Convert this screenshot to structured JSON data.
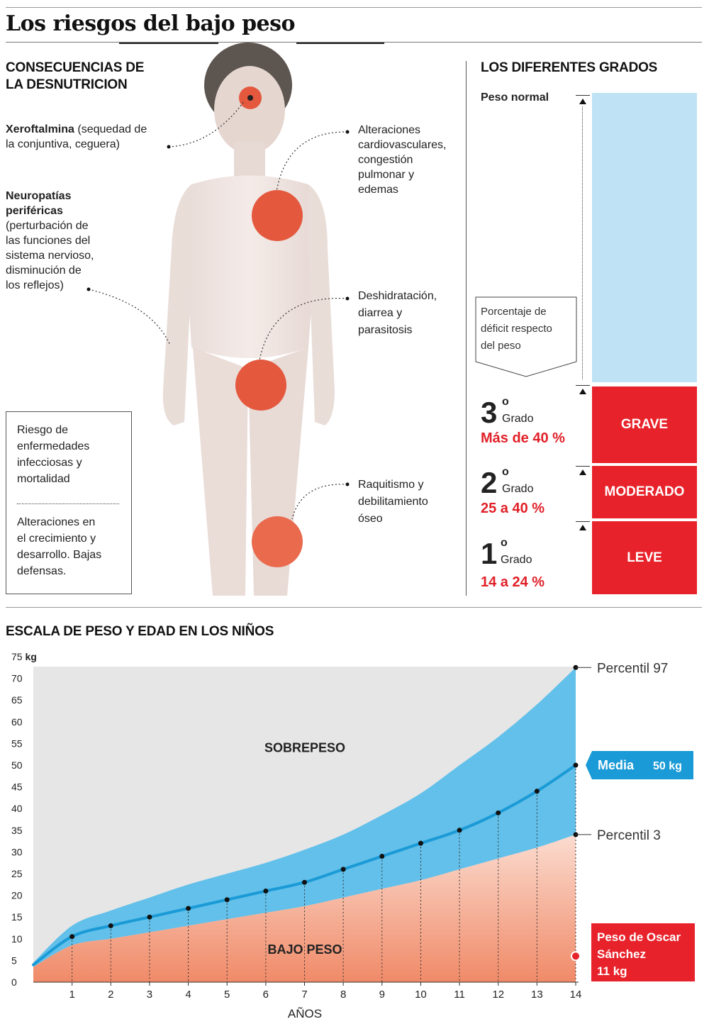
{
  "title": "Los riesgos del bajo peso",
  "sections": {
    "consequences_title": "CONSECUENCIAS DE\nLA DESNUTRICION",
    "grades_title": "LOS DIFERENTES GRADOS",
    "scale_title": "ESCALA DE PESO Y EDAD EN LOS NIÑOS"
  },
  "consequences": {
    "xeroftalmia_term": "Xeroftalmina",
    "xeroftalmia_rest": " (sequedad de la conjuntiva, ceguera)",
    "neuropatias_term": "Neuropatías\nperiféricas",
    "neuropatias_rest": "(perturbación de\nlas funciones del\nsistema nervioso,\ndisminución de\nlos reflejos)",
    "cardio": "Alteraciones\ncardiovasculares,\ncongestión\npulmonar y\nedemas",
    "deshidratacion": "Deshidratación,\ndiarrea y\nparasitosis",
    "raquitismo": "Raquitismo y\ndebilitamiento\nóseo",
    "box_riesgo": "Riesgo de\nenfermedades\ninfecciosas y\nmortalidad",
    "box_crecimiento": "Alteraciones  en\nel crecimiento y\ndesarrollo. Bajas\ndefensas."
  },
  "grades": {
    "peso_normal": "Peso normal",
    "deficit_note": "Porcentaje de\ndéficit respecto\ndel peso",
    "items": [
      {
        "num": "3",
        "sup": "o",
        "word": "Grado",
        "range": "Más de 40 %",
        "severity": "GRAVE"
      },
      {
        "num": "2",
        "sup": "o",
        "word": "Grado",
        "range": "25 a 40 %",
        "severity": "MODERADO"
      },
      {
        "num": "1",
        "sup": "o",
        "word": "Grado",
        "range": "14 a 24 %",
        "severity": "LEVE"
      }
    ],
    "colors": {
      "normal": "#bfe3f5",
      "severity": "#e8222a",
      "range_text": "#e02028"
    }
  },
  "chart_data": {
    "type": "area",
    "xlabel": "AÑOS",
    "x_ticks": [
      "1",
      "2",
      "3",
      "4",
      "5",
      "6",
      "7",
      "8",
      "9",
      "10",
      "11",
      "12",
      "13",
      "14"
    ],
    "y_ticks": [
      "0",
      "5",
      "10",
      "15",
      "20",
      "25",
      "30",
      "35",
      "40",
      "45",
      "50",
      "55",
      "60",
      "65",
      "70",
      "75"
    ],
    "y_unit": "kg",
    "xlim": [
      0,
      14
    ],
    "ylim": [
      0,
      75
    ],
    "x": [
      0,
      1,
      2,
      3,
      4,
      5,
      6,
      7,
      8,
      9,
      10,
      11,
      12,
      13,
      14
    ],
    "series": [
      {
        "name": "Percentil 97",
        "values": [
          4.5,
          13,
          16.5,
          19.5,
          22.5,
          25,
          27.5,
          30.5,
          34,
          38.5,
          43.5,
          50,
          56.5,
          64,
          72.5
        ]
      },
      {
        "name": "Media",
        "values": [
          4,
          10.5,
          13,
          15,
          17,
          19,
          21,
          23,
          26,
          29,
          32,
          35,
          39,
          44,
          50
        ]
      },
      {
        "name": "Percentil 3",
        "values": [
          3.5,
          8.5,
          10,
          11.5,
          13,
          14.5,
          16,
          17.5,
          19.5,
          21.5,
          23.5,
          26,
          28.5,
          31,
          34
        ]
      }
    ],
    "regions": {
      "upper": "SOBREPESO",
      "lower": "BAJO PESO"
    },
    "labels": {
      "p97": "Percentil 97",
      "media": "Media",
      "media_value": "50 kg",
      "p3": "Percentil 3"
    },
    "callout": {
      "text_line1": "Peso de Oscar",
      "text_line2": "Sánchez",
      "text_line3": "11 kg",
      "x": 14,
      "y": 6
    },
    "grid": false,
    "colors": {
      "background": "#e6e6e6",
      "band": "#62c0ea",
      "lower": "#f08a68",
      "media_line": "#1a9ad6",
      "callout": "#e8222a"
    }
  }
}
